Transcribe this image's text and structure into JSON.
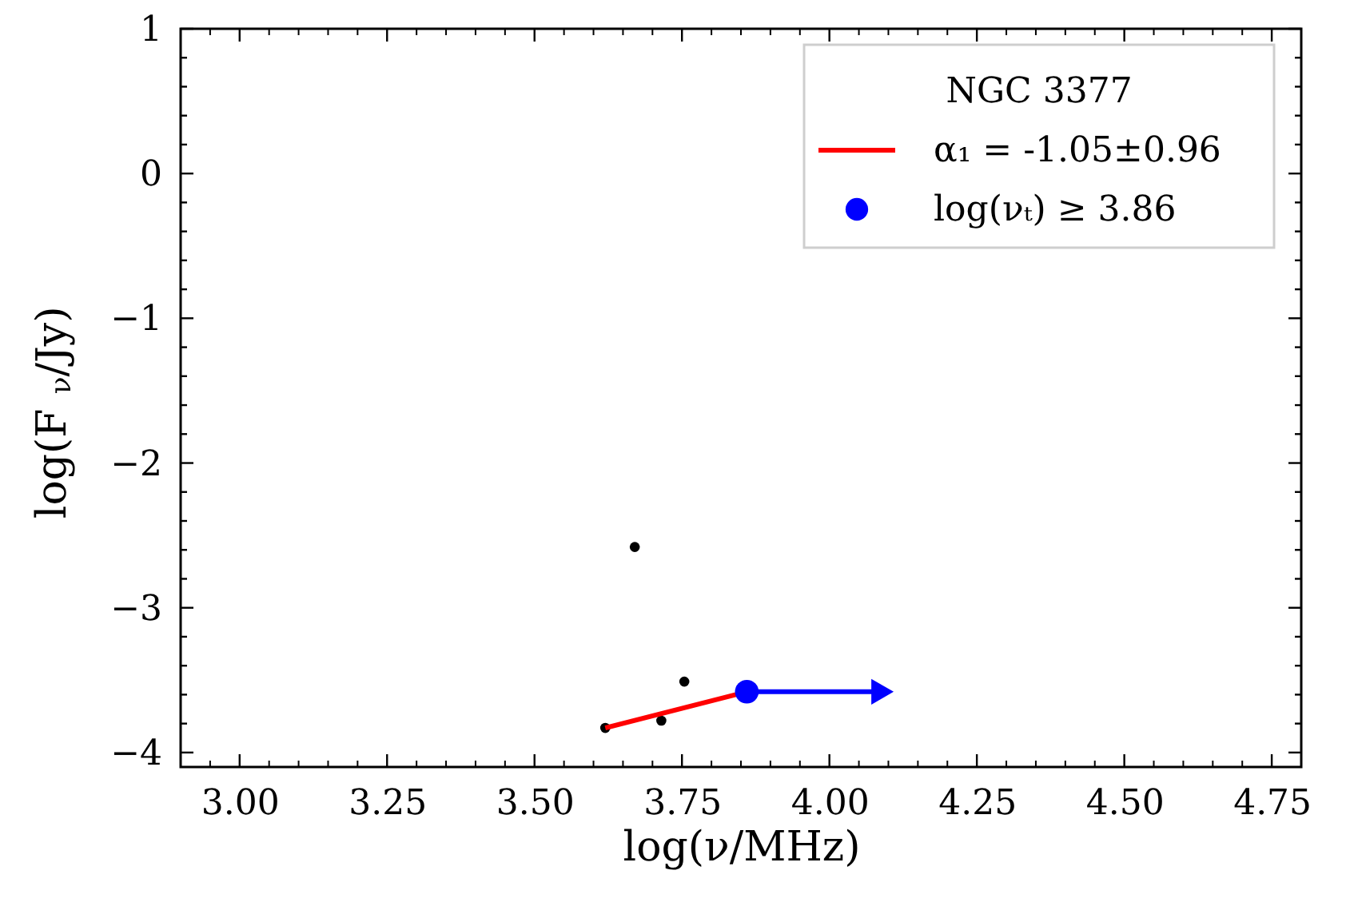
{
  "chart_data": {
    "type": "scatter",
    "xlabel": "log(ν/MHz)",
    "ylabel": "log(F$_{ν}$/Jy)",
    "legend_title": "NGC 3377",
    "xlim": [
      2.9,
      4.8
    ],
    "ylim": [
      -4.1,
      1.0
    ],
    "xticks": [
      {
        "value": 2.95,
        "label": null
      },
      {
        "value": 3.0,
        "label": "3.00"
      },
      {
        "value": 3.05,
        "label": null
      },
      {
        "value": 3.1,
        "label": null
      },
      {
        "value": 3.15,
        "label": null
      },
      {
        "value": 3.2,
        "label": null
      },
      {
        "value": 3.25,
        "label": "3.25"
      },
      {
        "value": 3.3,
        "label": null
      },
      {
        "value": 3.35,
        "label": null
      },
      {
        "value": 3.4,
        "label": null
      },
      {
        "value": 3.45,
        "label": null
      },
      {
        "value": 3.5,
        "label": "3.50"
      },
      {
        "value": 3.55,
        "label": null
      },
      {
        "value": 3.6,
        "label": null
      },
      {
        "value": 3.65,
        "label": null
      },
      {
        "value": 3.7,
        "label": null
      },
      {
        "value": 3.75,
        "label": "3.75"
      },
      {
        "value": 3.8,
        "label": null
      },
      {
        "value": 3.85,
        "label": null
      },
      {
        "value": 3.9,
        "label": null
      },
      {
        "value": 3.95,
        "label": null
      },
      {
        "value": 4.0,
        "label": "4.00"
      },
      {
        "value": 4.05,
        "label": null
      },
      {
        "value": 4.1,
        "label": null
      },
      {
        "value": 4.15,
        "label": null
      },
      {
        "value": 4.2,
        "label": null
      },
      {
        "value": 4.25,
        "label": "4.25"
      },
      {
        "value": 4.3,
        "label": null
      },
      {
        "value": 4.35,
        "label": null
      },
      {
        "value": 4.4,
        "label": null
      },
      {
        "value": 4.45,
        "label": null
      },
      {
        "value": 4.5,
        "label": "4.50"
      },
      {
        "value": 4.55,
        "label": null
      },
      {
        "value": 4.6,
        "label": null
      },
      {
        "value": 4.65,
        "label": null
      },
      {
        "value": 4.7,
        "label": null
      },
      {
        "value": 4.75,
        "label": "4.75"
      },
      {
        "value": 4.8,
        "label": null
      }
    ],
    "yticks": [
      {
        "value": -4.0,
        "label": "−4"
      },
      {
        "value": -3.8,
        "label": null
      },
      {
        "value": -3.6,
        "label": null
      },
      {
        "value": -3.4,
        "label": null
      },
      {
        "value": -3.2,
        "label": null
      },
      {
        "value": -3.0,
        "label": "−3"
      },
      {
        "value": -2.8,
        "label": null
      },
      {
        "value": -2.6,
        "label": null
      },
      {
        "value": -2.4,
        "label": null
      },
      {
        "value": -2.2,
        "label": null
      },
      {
        "value": -2.0,
        "label": "−2"
      },
      {
        "value": -1.8,
        "label": null
      },
      {
        "value": -1.6,
        "label": null
      },
      {
        "value": -1.4,
        "label": null
      },
      {
        "value": -1.2,
        "label": null
      },
      {
        "value": -1.0,
        "label": "−1"
      },
      {
        "value": -0.8,
        "label": null
      },
      {
        "value": -0.6,
        "label": null
      },
      {
        "value": -0.4,
        "label": null
      },
      {
        "value": -0.2,
        "label": null
      },
      {
        "value": 0.0,
        "label": "0"
      },
      {
        "value": 0.2,
        "label": null
      },
      {
        "value": 0.4,
        "label": null
      },
      {
        "value": 0.6,
        "label": null
      },
      {
        "value": 0.8,
        "label": null
      },
      {
        "value": 1.0,
        "label": "1"
      }
    ],
    "grid": false,
    "legend": "top right",
    "series": [
      {
        "color": "#000000",
        "marker": "circle",
        "x": [
          3.62,
          3.67,
          3.715,
          3.754
        ],
        "values": [
          -3.83,
          -2.58,
          -3.78,
          -3.51
        ]
      },
      {
        "type": "line",
        "name": "α₁ =  -1.05±0.96",
        "color": "#ff0000",
        "marker": "none",
        "x": [
          3.62,
          3.86
        ],
        "values": [
          -3.83,
          -3.58
        ]
      },
      {
        "name": "log(νₜ)  ≥  3.86",
        "color": "#0000ff",
        "marker": "circle",
        "x": [
          3.86
        ],
        "values": [
          -3.58
        ]
      },
      {
        "type": "line",
        "color": "#0000ff",
        "marker": "triangle",
        "x": [
          3.86,
          4.09
        ],
        "values": [
          -3.58,
          -3.58
        ]
      }
    ]
  }
}
